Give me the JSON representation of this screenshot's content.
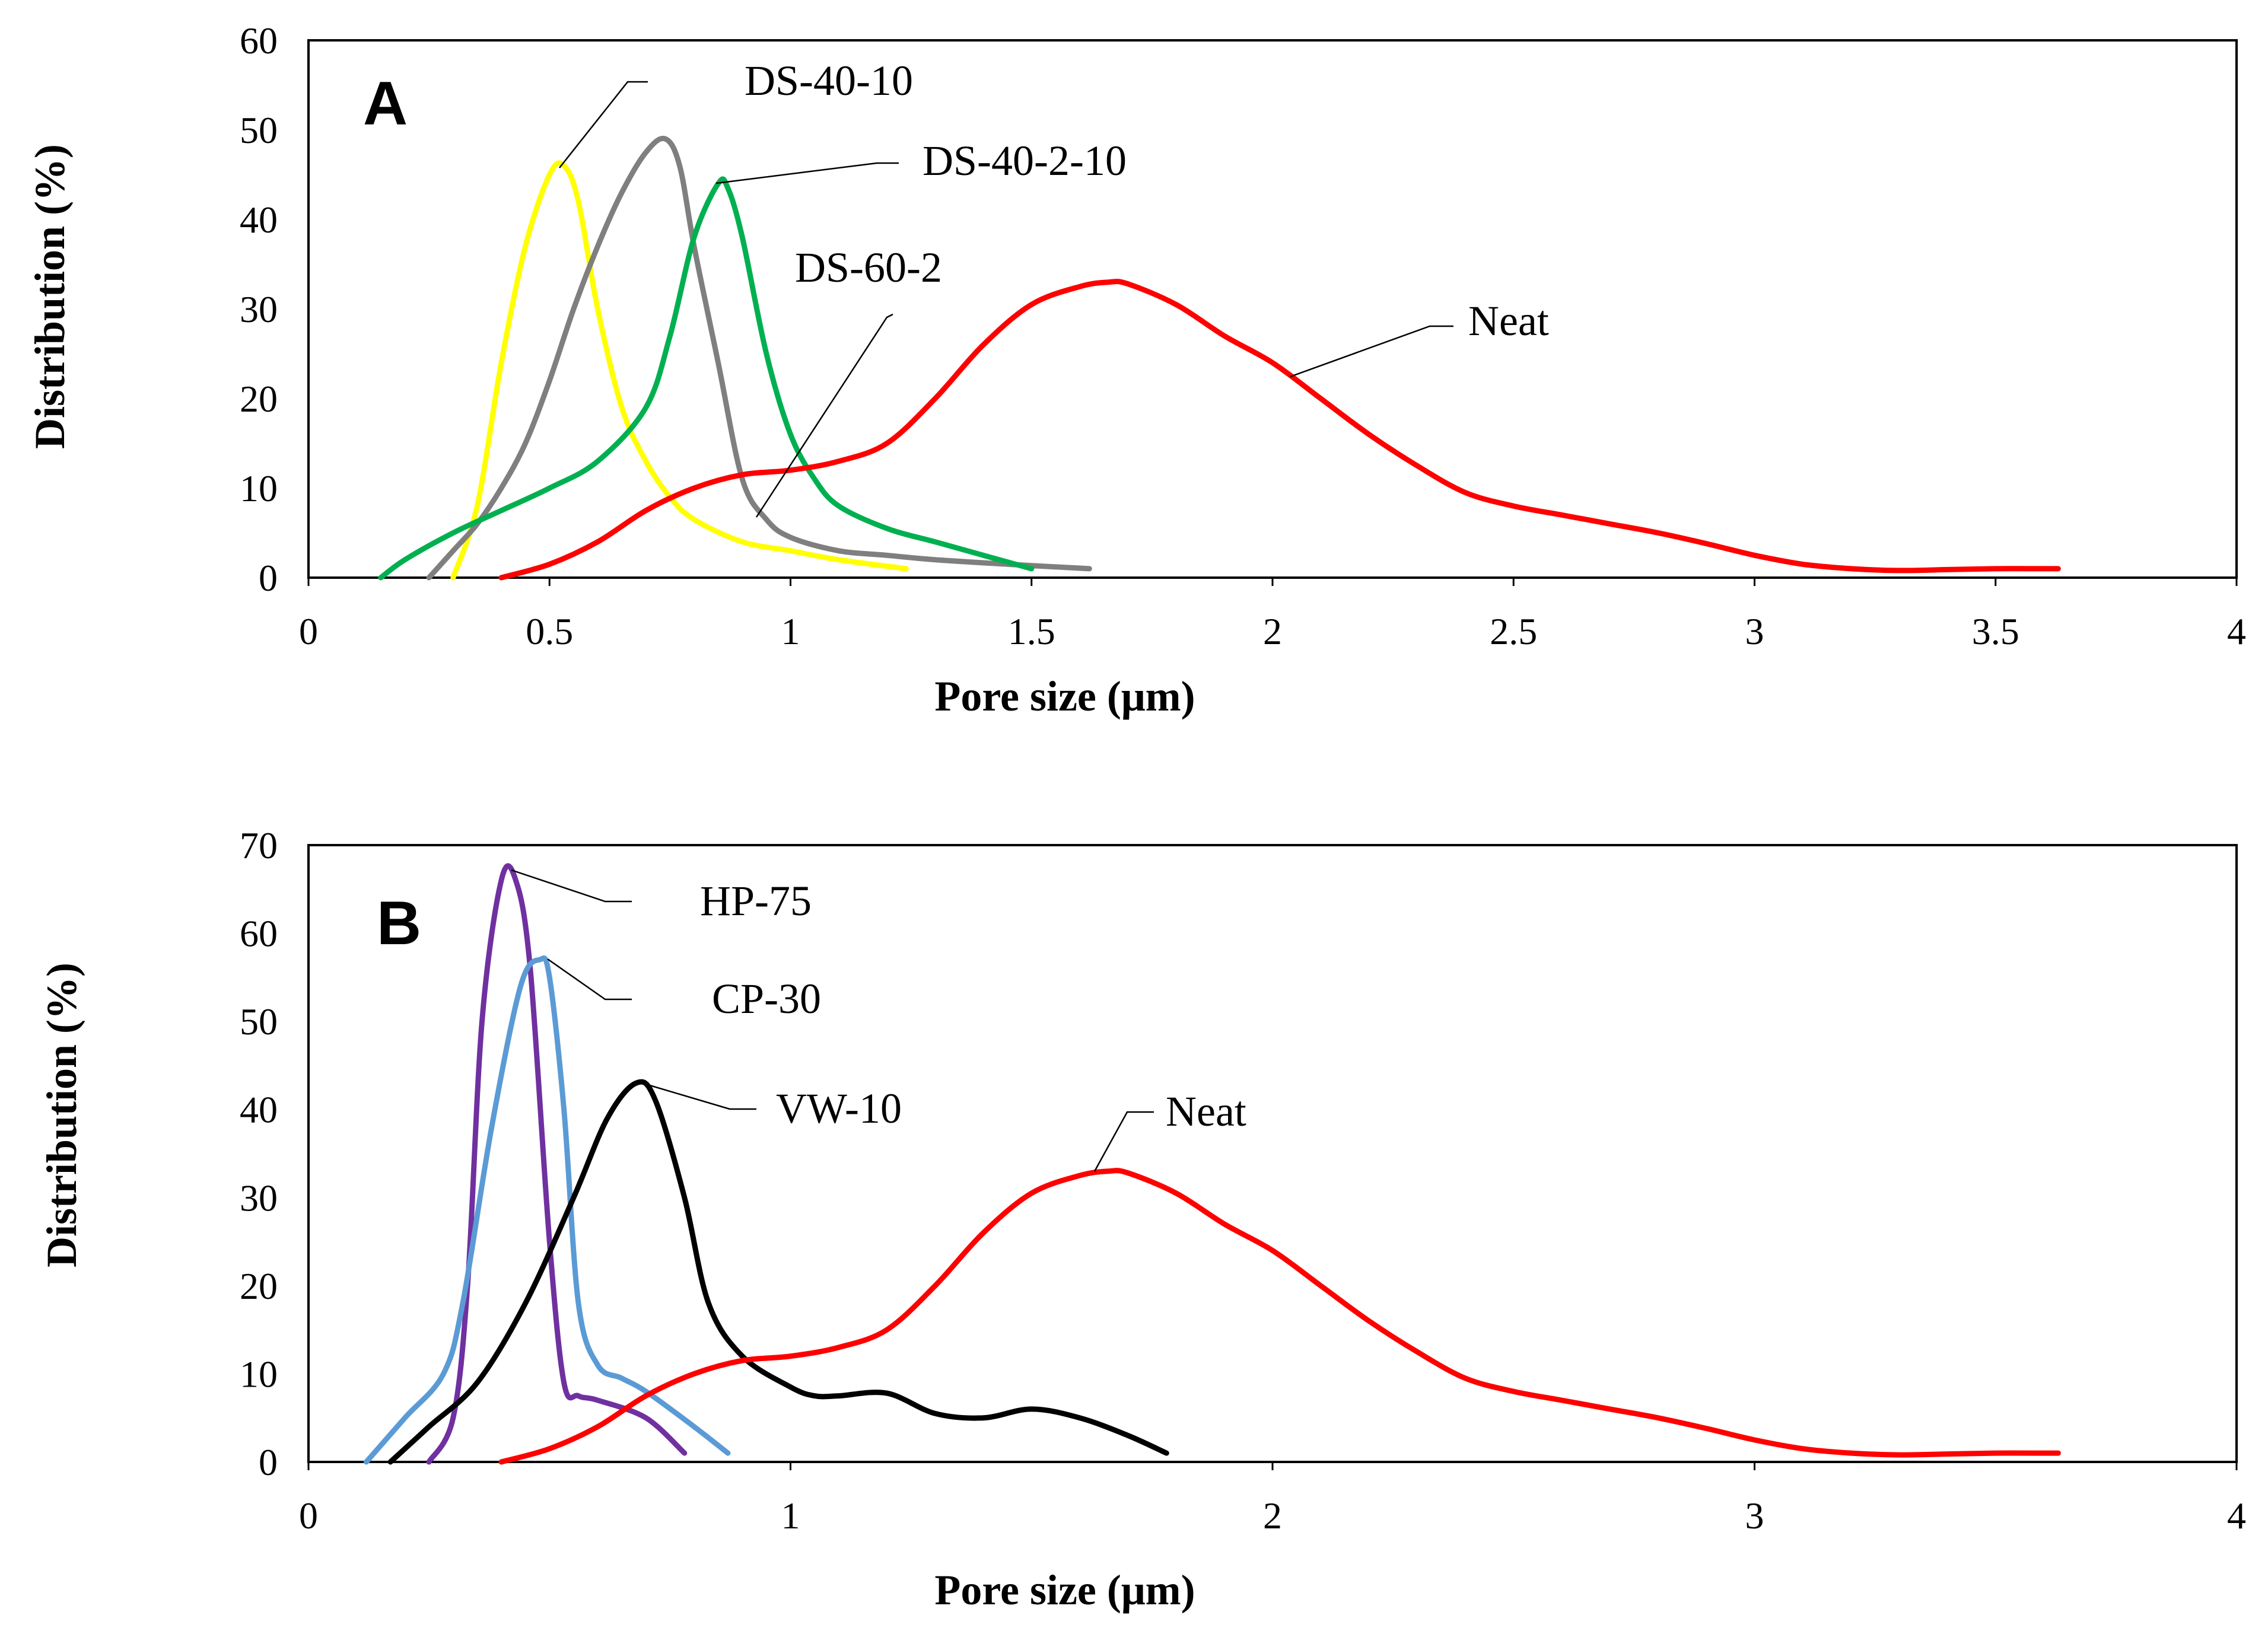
{
  "chart_data": [
    {
      "type": "line",
      "panel": "A",
      "title": "",
      "xlabel": "Pore size (μm)",
      "ylabel": "Distribution (%)",
      "xlim": [
        0,
        4
      ],
      "ylim": [
        0,
        60
      ],
      "xticks": [
        0,
        0.5,
        1,
        1.5,
        2,
        2.5,
        3,
        3.5,
        4
      ],
      "xtick_labels": [
        "0",
        "0.5",
        "1",
        "1.5",
        "2",
        "2.5",
        "3",
        "3.5",
        "4"
      ],
      "yticks": [
        0,
        10,
        20,
        30,
        40,
        50,
        60
      ],
      "ytick_labels": [
        "0",
        "10",
        "20",
        "30",
        "40",
        "50",
        "60"
      ],
      "grid": false,
      "legend": "none",
      "series": [
        {
          "name": "DS-40-10",
          "color": "#ffff00",
          "x": [
            0.3,
            0.35,
            0.4,
            0.45,
            0.5,
            0.53,
            0.56,
            0.6,
            0.65,
            0.7,
            0.75,
            0.8,
            0.9,
            1.0,
            1.1,
            1.24
          ],
          "y": [
            0,
            8,
            24,
            37,
            45,
            46,
            42,
            30,
            19,
            13,
            9,
            6.5,
            4,
            3,
            2,
            1
          ]
        },
        {
          "name": "DS-60-2",
          "color": "#7f7f7f",
          "x": [
            0.25,
            0.3,
            0.35,
            0.4,
            0.45,
            0.5,
            0.55,
            0.6,
            0.65,
            0.7,
            0.74,
            0.77,
            0.8,
            0.85,
            0.9,
            0.95,
            1.0,
            1.1,
            1.2,
            1.3,
            1.45,
            1.62
          ],
          "y": [
            0,
            3,
            6,
            10,
            15,
            22,
            30,
            37,
            43,
            47.5,
            49,
            46,
            37,
            24,
            11,
            6.5,
            4.5,
            3,
            2.5,
            2,
            1.5,
            1
          ]
        },
        {
          "name": "DS-40-2-10",
          "color": "#00b050",
          "x": [
            0.15,
            0.2,
            0.3,
            0.4,
            0.5,
            0.6,
            0.7,
            0.75,
            0.8,
            0.85,
            0.87,
            0.9,
            0.95,
            1.0,
            1.05,
            1.1,
            1.2,
            1.3,
            1.4,
            1.5
          ],
          "y": [
            0,
            2,
            5,
            7.5,
            10,
            13,
            19,
            27,
            38,
            44,
            43.5,
            38,
            25,
            16,
            11,
            8,
            5.5,
            4,
            2.5,
            1
          ]
        },
        {
          "name": "Neat",
          "color": "#ff0000",
          "x": [
            0.4,
            0.5,
            0.6,
            0.7,
            0.8,
            0.9,
            1.0,
            1.1,
            1.2,
            1.3,
            1.4,
            1.5,
            1.6,
            1.66,
            1.7,
            1.8,
            1.9,
            2.0,
            2.1,
            2.2,
            2.3,
            2.4,
            2.5,
            2.6,
            2.7,
            2.8,
            2.9,
            3.0,
            3.1,
            3.2,
            3.3,
            3.4,
            3.5,
            3.6,
            3.63
          ],
          "y": [
            0,
            1.5,
            4,
            7.5,
            10,
            11.5,
            12,
            13,
            15,
            20,
            26,
            30.5,
            32.5,
            33,
            32.8,
            30.5,
            27,
            24,
            20,
            16,
            12.5,
            9.5,
            8,
            7,
            6,
            5,
            3.8,
            2.5,
            1.5,
            1,
            0.8,
            0.9,
            1,
            1,
            1
          ]
        }
      ],
      "annotations": [
        "A",
        "DS-40-10",
        "DS-40-2-10",
        "DS-60-2",
        "Neat"
      ]
    },
    {
      "type": "line",
      "panel": "B",
      "title": "",
      "xlabel": "Pore size (μm)",
      "ylabel": "Distribution (%)",
      "xlim": [
        0,
        4
      ],
      "ylim": [
        0,
        70
      ],
      "xticks": [
        0,
        1,
        2,
        3,
        4
      ],
      "xtick_labels": [
        "0",
        "1",
        "2",
        "3",
        "4"
      ],
      "yticks": [
        0,
        10,
        20,
        30,
        40,
        50,
        60,
        70
      ],
      "ytick_labels": [
        "0",
        "10",
        "20",
        "30",
        "40",
        "50",
        "60",
        "70"
      ],
      "grid": false,
      "legend": "none",
      "series": [
        {
          "name": "HP-75",
          "color": "#7030a0",
          "x": [
            0.25,
            0.3,
            0.33,
            0.36,
            0.4,
            0.43,
            0.46,
            0.5,
            0.53,
            0.56,
            0.6,
            0.7,
            0.78
          ],
          "y": [
            0,
            5,
            20,
            50,
            66,
            66,
            56,
            25,
            9,
            7.5,
            7,
            5,
            1
          ]
        },
        {
          "name": "CP-30",
          "color": "#5b9bd5",
          "x": [
            0.12,
            0.2,
            0.28,
            0.32,
            0.38,
            0.44,
            0.48,
            0.5,
            0.53,
            0.56,
            0.6,
            0.65,
            0.7,
            0.8,
            0.87
          ],
          "y": [
            0,
            5,
            10,
            18,
            38,
            54,
            57,
            55,
            40,
            18,
            11,
            9.5,
            8,
            4,
            1
          ]
        },
        {
          "name": "VW-10",
          "color": "#000000",
          "x": [
            0.17,
            0.25,
            0.35,
            0.45,
            0.55,
            0.62,
            0.68,
            0.72,
            0.78,
            0.83,
            0.9,
            1.0,
            1.05,
            1.1,
            1.2,
            1.3,
            1.4,
            1.5,
            1.6,
            1.7,
            1.78
          ],
          "y": [
            0,
            4,
            9,
            18,
            30,
            39,
            43,
            41,
            30,
            18,
            12,
            8.5,
            7.5,
            7.5,
            7.8,
            5.5,
            5,
            6,
            5,
            3,
            1
          ]
        },
        {
          "name": "Neat",
          "color": "#ff0000",
          "x": [
            0.4,
            0.5,
            0.6,
            0.7,
            0.8,
            0.9,
            1.0,
            1.1,
            1.2,
            1.3,
            1.4,
            1.5,
            1.6,
            1.66,
            1.7,
            1.8,
            1.9,
            2.0,
            2.1,
            2.2,
            2.3,
            2.4,
            2.5,
            2.6,
            2.7,
            2.8,
            2.9,
            3.0,
            3.1,
            3.2,
            3.3,
            3.4,
            3.5,
            3.6,
            3.63
          ],
          "y": [
            0,
            1.5,
            4,
            7.5,
            10,
            11.5,
            12,
            13,
            15,
            20,
            26,
            30.5,
            32.5,
            33,
            32.8,
            30.5,
            27,
            24,
            20,
            16,
            12.5,
            9.5,
            8,
            7,
            6,
            5,
            3.8,
            2.5,
            1.5,
            1,
            0.8,
            0.9,
            1,
            1,
            1
          ]
        }
      ],
      "annotations": [
        "B",
        "HP-75",
        "CP-30",
        "VW-10",
        "Neat"
      ]
    }
  ]
}
